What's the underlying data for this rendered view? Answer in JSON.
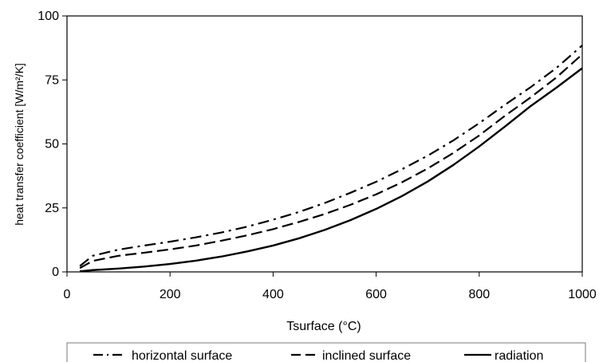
{
  "chart_data": {
    "type": "line",
    "title": "",
    "xlabel": "Tsurface (°C)",
    "ylabel": "heat transfer coefficient [W/m²/K]",
    "xlim": [
      0,
      1000
    ],
    "ylim": [
      0,
      100
    ],
    "x_ticks": [
      0,
      200,
      400,
      600,
      800,
      1000
    ],
    "y_ticks": [
      0,
      25,
      50,
      75,
      100
    ],
    "grid": false,
    "legend_placement": "bottom",
    "series": [
      {
        "name": "horizontal surface",
        "style": "dash-dot",
        "x": [
          25,
          50,
          100,
          150,
          200,
          250,
          300,
          350,
          400,
          450,
          500,
          550,
          600,
          650,
          700,
          750,
          800,
          850,
          900,
          950,
          1000
        ],
        "values": [
          2.3,
          6.3,
          8.7,
          10.3,
          11.8,
          13.5,
          15.4,
          17.7,
          20.4,
          23.4,
          26.9,
          30.9,
          35.2,
          40.1,
          45.4,
          51.4,
          58.1,
          65.3,
          72.2,
          79.7,
          88.5
        ]
      },
      {
        "name": "inclined surface",
        "style": "dashed",
        "x": [
          25,
          50,
          100,
          150,
          200,
          250,
          300,
          350,
          400,
          450,
          500,
          550,
          600,
          650,
          700,
          750,
          800,
          850,
          900,
          950,
          1000
        ],
        "values": [
          1.5,
          4.3,
          6.3,
          7.5,
          8.8,
          10.3,
          12.2,
          14.3,
          16.7,
          19.5,
          22.6,
          26.2,
          30.3,
          35.0,
          40.4,
          46.5,
          53.3,
          61.0,
          68.2,
          76.0,
          85.0
        ]
      },
      {
        "name": "radiation",
        "style": "solid",
        "x": [
          25,
          50,
          100,
          150,
          200,
          250,
          300,
          350,
          400,
          450,
          500,
          550,
          600,
          650,
          700,
          750,
          800,
          850,
          900,
          950,
          1000
        ],
        "values": [
          0.2,
          0.7,
          1.3,
          2.1,
          3.1,
          4.4,
          6.0,
          8.0,
          10.3,
          13.1,
          16.4,
          20.2,
          24.6,
          29.6,
          35.3,
          41.8,
          49.0,
          56.8,
          64.8,
          72.0,
          79.6
        ]
      }
    ]
  }
}
